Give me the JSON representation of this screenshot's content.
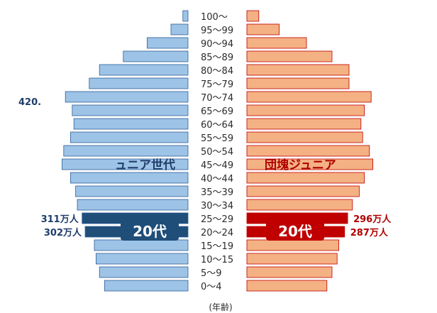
{
  "chart_data": {
    "type": "bar",
    "orientation": "horizontal-population-pyramid",
    "unit_label": "(年齢)",
    "categories": [
      "0～4",
      "5～9",
      "10～15",
      "15～19",
      "20～24",
      "25～29",
      "30～34",
      "35～39",
      "40～44",
      "45～49",
      "50～54",
      "55～59",
      "60～64",
      "65～69",
      "70～74",
      "75～79",
      "80～84",
      "85～89",
      "90～94",
      "95～99",
      "100～"
    ],
    "series": [
      {
        "side": "left",
        "color": "#9dc3e6",
        "highlight_color": "#1f4e79",
        "values": [
          245,
          260,
          270,
          275,
          302,
          311,
          325,
          330,
          345,
          370,
          365,
          345,
          335,
          340,
          360,
          290,
          260,
          190,
          120,
          50,
          15
        ]
      },
      {
        "side": "right",
        "color": "#f4b183",
        "highlight_color": "#c00000",
        "values": [
          235,
          250,
          265,
          270,
          287,
          296,
          310,
          330,
          345,
          370,
          360,
          340,
          335,
          345,
          365,
          300,
          300,
          250,
          175,
          95,
          35
        ]
      }
    ],
    "highlight_categories": [
      "20～24",
      "25～29"
    ],
    "value_labels": [
      {
        "side": "left",
        "category": "25～29",
        "text": "311万人"
      },
      {
        "side": "left",
        "category": "20～24",
        "text": "302万人"
      },
      {
        "side": "right",
        "category": "25～29",
        "text": "296万人"
      },
      {
        "side": "right",
        "category": "20～24",
        "text": "287万人"
      }
    ],
    "annotations": {
      "left_generation": "ュニア世代",
      "right_generation": "団塊ジュニア",
      "left_badge": "20代",
      "right_badge": "20代",
      "left_partial_value": "420."
    }
  }
}
